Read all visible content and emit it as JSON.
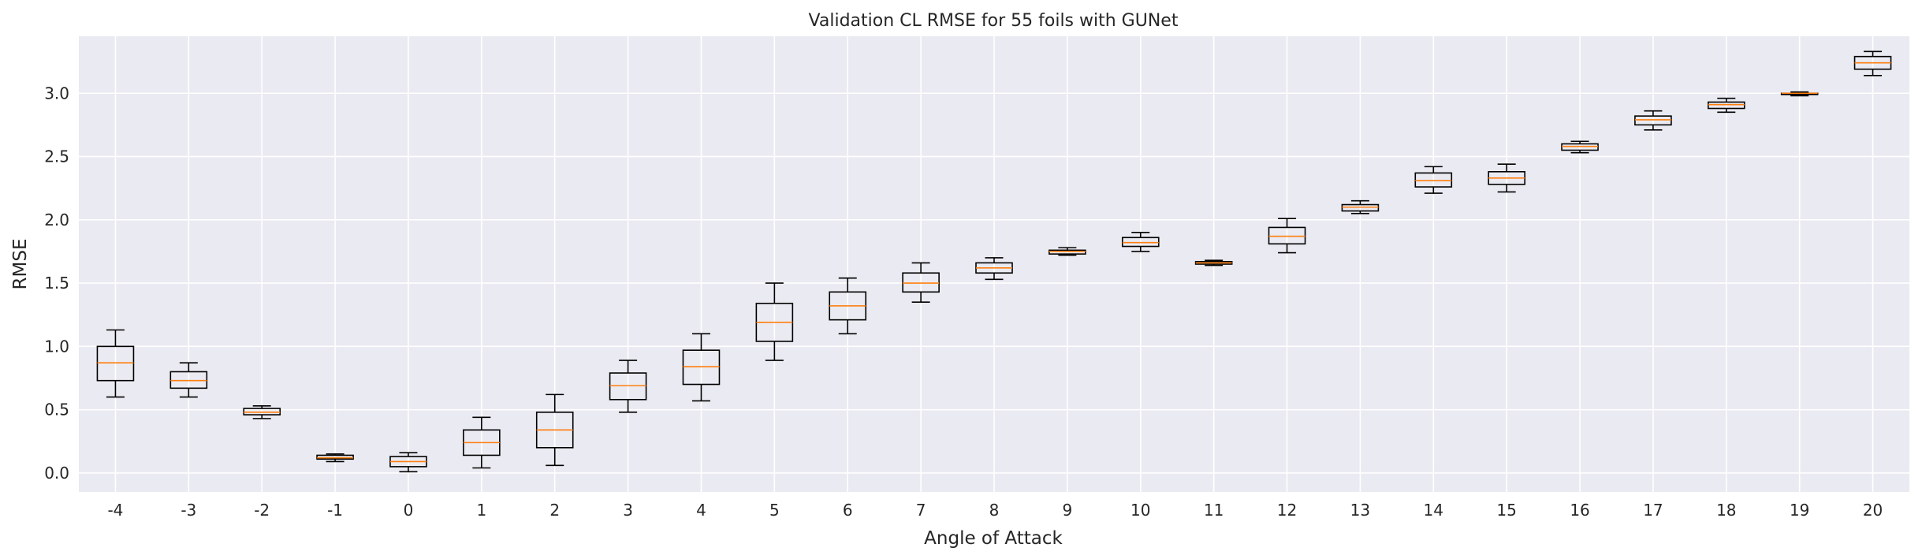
{
  "chart_data": {
    "type": "boxplot",
    "title": "Validation CL RMSE for 55 foils with GUNet",
    "xlabel": "Angle of Attack",
    "ylabel": "RMSE",
    "ylim": [
      -0.15,
      3.45
    ],
    "yticks": [
      "0.0",
      "0.5",
      "1.0",
      "1.5",
      "2.0",
      "2.5",
      "3.0"
    ],
    "grid": true,
    "colors": {
      "background": "#eaeaf2",
      "grid": "#ffffff",
      "box": "#000000",
      "median": "#ff7f0e",
      "text": "#262626"
    },
    "categories": [
      "-4",
      "-3",
      "-2",
      "-1",
      "0",
      "1",
      "2",
      "3",
      "4",
      "5",
      "6",
      "7",
      "8",
      "9",
      "10",
      "11",
      "12",
      "13",
      "14",
      "15",
      "16",
      "17",
      "18",
      "19",
      "20"
    ],
    "boxes": [
      {
        "whislo": 0.6,
        "q1": 0.73,
        "med": 0.87,
        "q3": 1.0,
        "whishi": 1.13
      },
      {
        "whislo": 0.6,
        "q1": 0.67,
        "med": 0.73,
        "q3": 0.8,
        "whishi": 0.87
      },
      {
        "whislo": 0.43,
        "q1": 0.46,
        "med": 0.48,
        "q3": 0.51,
        "whishi": 0.53
      },
      {
        "whislo": 0.09,
        "q1": 0.11,
        "med": 0.12,
        "q3": 0.14,
        "whishi": 0.15
      },
      {
        "whislo": 0.01,
        "q1": 0.05,
        "med": 0.09,
        "q3": 0.13,
        "whishi": 0.16
      },
      {
        "whislo": 0.04,
        "q1": 0.14,
        "med": 0.24,
        "q3": 0.34,
        "whishi": 0.44
      },
      {
        "whislo": 0.06,
        "q1": 0.2,
        "med": 0.34,
        "q3": 0.48,
        "whishi": 0.62
      },
      {
        "whislo": 0.48,
        "q1": 0.58,
        "med": 0.69,
        "q3": 0.79,
        "whishi": 0.89
      },
      {
        "whislo": 0.57,
        "q1": 0.7,
        "med": 0.84,
        "q3": 0.97,
        "whishi": 1.1
      },
      {
        "whislo": 0.89,
        "q1": 1.04,
        "med": 1.19,
        "q3": 1.34,
        "whishi": 1.5
      },
      {
        "whislo": 1.1,
        "q1": 1.21,
        "med": 1.32,
        "q3": 1.43,
        "whishi": 1.54
      },
      {
        "whislo": 1.35,
        "q1": 1.43,
        "med": 1.5,
        "q3": 1.58,
        "whishi": 1.66
      },
      {
        "whislo": 1.53,
        "q1": 1.58,
        "med": 1.62,
        "q3": 1.66,
        "whishi": 1.7
      },
      {
        "whislo": 1.72,
        "q1": 1.73,
        "med": 1.75,
        "q3": 1.76,
        "whishi": 1.78
      },
      {
        "whislo": 1.75,
        "q1": 1.79,
        "med": 1.82,
        "q3": 1.86,
        "whishi": 1.9
      },
      {
        "whislo": 1.64,
        "q1": 1.65,
        "med": 1.66,
        "q3": 1.67,
        "whishi": 1.68
      },
      {
        "whislo": 1.74,
        "q1": 1.81,
        "med": 1.87,
        "q3": 1.94,
        "whishi": 2.01
      },
      {
        "whislo": 2.05,
        "q1": 2.07,
        "med": 2.1,
        "q3": 2.12,
        "whishi": 2.15
      },
      {
        "whislo": 2.21,
        "q1": 2.26,
        "med": 2.31,
        "q3": 2.37,
        "whishi": 2.42
      },
      {
        "whislo": 2.22,
        "q1": 2.28,
        "med": 2.33,
        "q3": 2.38,
        "whishi": 2.44
      },
      {
        "whislo": 2.53,
        "q1": 2.55,
        "med": 2.58,
        "q3": 2.6,
        "whishi": 2.62
      },
      {
        "whislo": 2.71,
        "q1": 2.75,
        "med": 2.79,
        "q3": 2.82,
        "whishi": 2.86
      },
      {
        "whislo": 2.85,
        "q1": 2.88,
        "med": 2.91,
        "q3": 2.93,
        "whishi": 2.96
      },
      {
        "whislo": 2.98,
        "q1": 2.99,
        "med": 3.0,
        "q3": 3.0,
        "whishi": 3.01
      },
      {
        "whislo": 3.14,
        "q1": 3.19,
        "med": 3.24,
        "q3": 3.29,
        "whishi": 3.33
      }
    ]
  }
}
